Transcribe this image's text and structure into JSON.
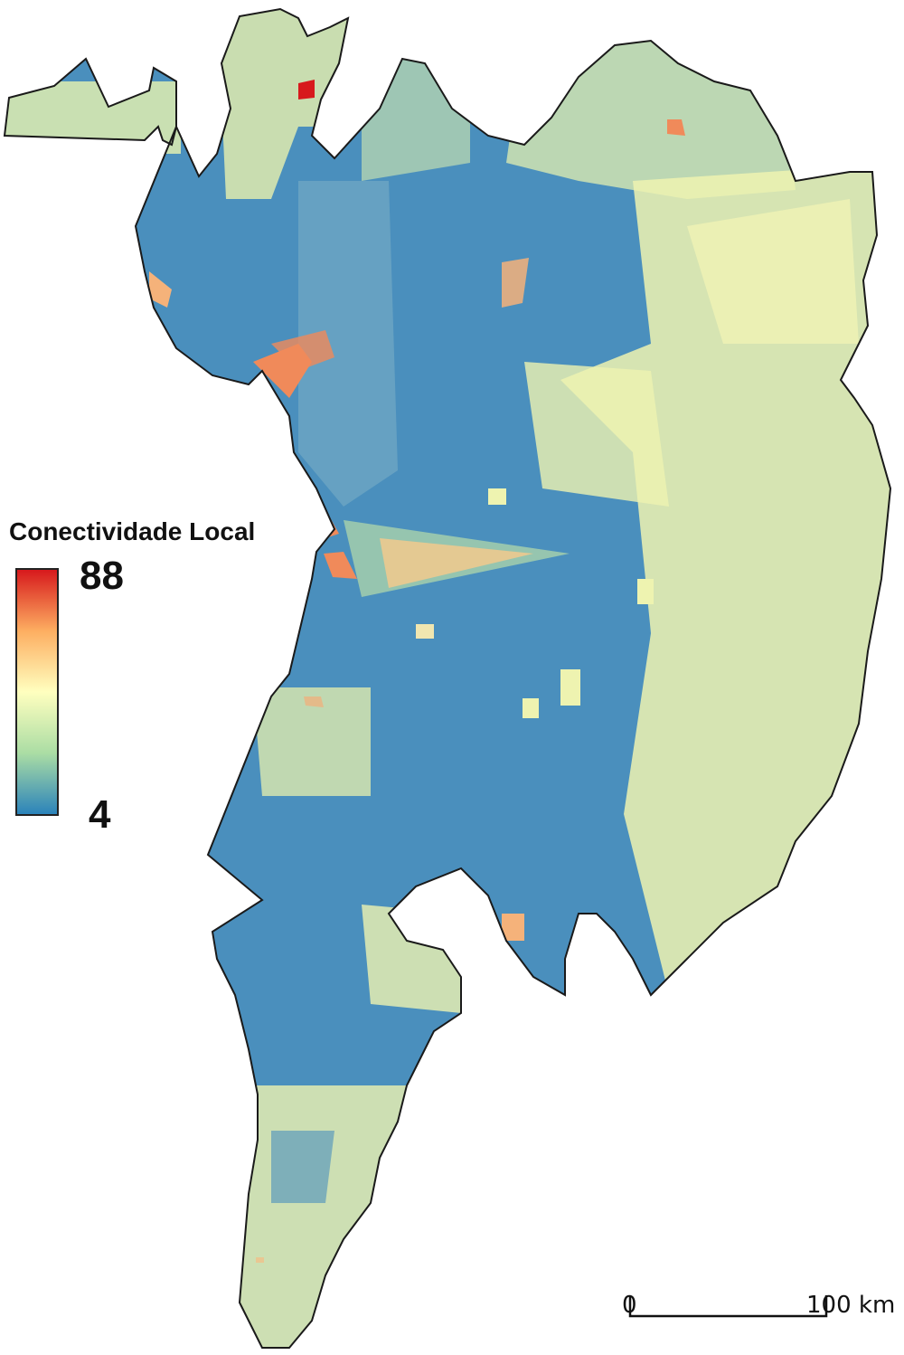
{
  "legend": {
    "title": "Conectividade Local",
    "max_label": "88",
    "min_label": "4",
    "max_value": 88,
    "min_value": 4,
    "ramp_colors": [
      "#d7191c",
      "#fdae61",
      "#ffffbf",
      "#abdda4",
      "#2b83ba"
    ]
  },
  "scale_bar": {
    "start_label": "0",
    "end_label": "100 km"
  },
  "map_colors": {
    "low": "#4a8fbd",
    "low_dark": "#3f7fb3",
    "mid": "#f2f4b0",
    "mid_green": "#c9e6a8",
    "high": "#f08a5a",
    "peak": "#d7191c",
    "outline": "#1a1a1a"
  }
}
